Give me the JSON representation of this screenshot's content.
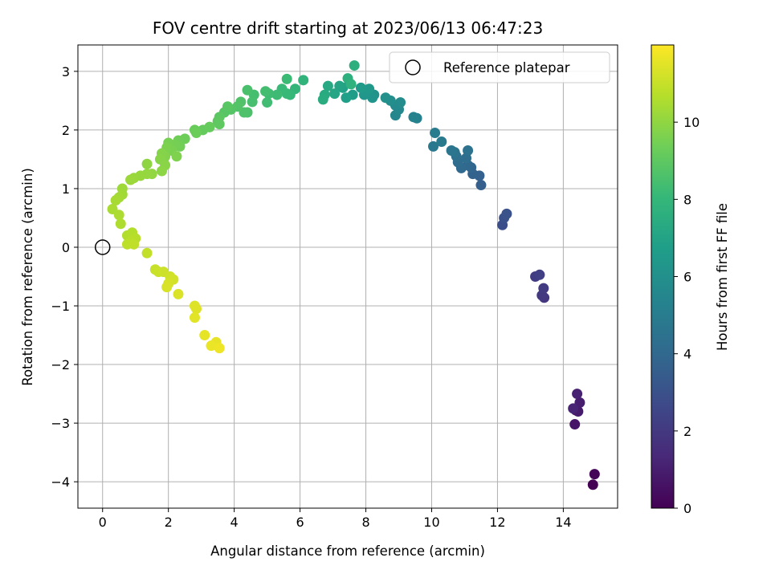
{
  "chart_data": {
    "type": "scatter",
    "title": "FOV centre drift starting at 2023/06/13 06:47:23",
    "xlabel": "Angular distance from reference (arcmin)",
    "ylabel": "Rotation from reference (arcmin)",
    "xlim": [
      -0.75,
      15.65
    ],
    "ylim": [
      -4.45,
      3.45
    ],
    "xticks": [
      0,
      2,
      4,
      6,
      8,
      10,
      12,
      14
    ],
    "yticks": [
      -4,
      -3,
      -2,
      -1,
      0,
      1,
      2,
      3
    ],
    "grid": true,
    "legend": {
      "placement": "top-right",
      "entries": [
        "Reference platepar"
      ]
    },
    "reference_point": {
      "x": 0,
      "y": 0
    },
    "colorbar": {
      "label": "Hours from first FF file",
      "range": [
        0,
        12
      ],
      "ticks": [
        0,
        2,
        4,
        6,
        8,
        10
      ],
      "colormap": "viridis"
    },
    "points": [
      [
        14.9,
        -4.05,
        0.0
      ],
      [
        14.95,
        -3.87,
        0.1
      ],
      [
        14.35,
        -3.02,
        0.7
      ],
      [
        14.38,
        -2.78,
        0.8
      ],
      [
        14.45,
        -2.8,
        0.9
      ],
      [
        14.5,
        -2.65,
        1.0
      ],
      [
        14.42,
        -2.5,
        1.1
      ],
      [
        14.3,
        -2.75,
        1.2
      ],
      [
        13.42,
        -0.86,
        1.9
      ],
      [
        13.35,
        -0.82,
        2.0
      ],
      [
        13.4,
        -0.7,
        2.1
      ],
      [
        13.15,
        -0.5,
        2.2
      ],
      [
        13.28,
        -0.47,
        2.3
      ],
      [
        12.15,
        0.38,
        2.9
      ],
      [
        12.2,
        0.5,
        3.0
      ],
      [
        12.28,
        0.57,
        3.1
      ],
      [
        11.5,
        1.06,
        3.6
      ],
      [
        11.45,
        1.22,
        3.7
      ],
      [
        11.25,
        1.25,
        3.8
      ],
      [
        11.2,
        1.36,
        3.9
      ],
      [
        11.1,
        1.4,
        4.0
      ],
      [
        10.9,
        1.35,
        4.1
      ],
      [
        10.8,
        1.45,
        4.2
      ],
      [
        11.05,
        1.52,
        4.3
      ],
      [
        10.75,
        1.55,
        4.4
      ],
      [
        11.1,
        1.65,
        4.5
      ],
      [
        10.7,
        1.62,
        4.6
      ],
      [
        10.6,
        1.65,
        4.7
      ],
      [
        10.05,
        1.72,
        4.8
      ],
      [
        10.3,
        1.8,
        4.9
      ],
      [
        10.1,
        1.95,
        5.0
      ],
      [
        9.55,
        2.2,
        5.3
      ],
      [
        9.45,
        2.22,
        5.4
      ],
      [
        8.9,
        2.25,
        5.5
      ],
      [
        9.0,
        2.35,
        5.6
      ],
      [
        8.9,
        2.42,
        5.7
      ],
      [
        9.05,
        2.47,
        5.8
      ],
      [
        8.75,
        2.5,
        5.9
      ],
      [
        8.6,
        2.55,
        6.0
      ],
      [
        8.25,
        2.6,
        6.1
      ],
      [
        8.2,
        2.55,
        6.2
      ],
      [
        7.95,
        2.6,
        6.3
      ],
      [
        8.1,
        2.7,
        6.4
      ],
      [
        7.85,
        2.72,
        6.5
      ],
      [
        7.6,
        2.6,
        6.6
      ],
      [
        7.4,
        2.55,
        6.7
      ],
      [
        7.3,
        2.72,
        6.8
      ],
      [
        7.5,
        2.8,
        6.9
      ],
      [
        7.2,
        2.75,
        7.0
      ],
      [
        7.05,
        2.62,
        7.1
      ],
      [
        6.85,
        2.75,
        7.2
      ],
      [
        6.75,
        2.6,
        7.3
      ],
      [
        6.7,
        2.52,
        7.4
      ],
      [
        7.65,
        3.1,
        7.5
      ],
      [
        7.45,
        2.88,
        7.6
      ],
      [
        7.55,
        2.78,
        7.7
      ],
      [
        6.1,
        2.85,
        7.8
      ],
      [
        5.85,
        2.7,
        7.9
      ],
      [
        5.7,
        2.6,
        8.0
      ],
      [
        5.6,
        2.62,
        8.05
      ],
      [
        5.45,
        2.7,
        8.1
      ],
      [
        5.6,
        2.87,
        8.15
      ],
      [
        5.3,
        2.6,
        8.2
      ],
      [
        5.05,
        2.62,
        8.25
      ],
      [
        5.0,
        2.47,
        8.3
      ],
      [
        4.95,
        2.66,
        8.35
      ],
      [
        4.6,
        2.6,
        8.4
      ],
      [
        4.55,
        2.48,
        8.45
      ],
      [
        4.4,
        2.68,
        8.5
      ],
      [
        4.4,
        2.3,
        8.55
      ],
      [
        4.3,
        2.3,
        8.6
      ],
      [
        4.2,
        2.48,
        8.65
      ],
      [
        4.1,
        2.4,
        8.7
      ],
      [
        3.9,
        2.35,
        8.75
      ],
      [
        3.7,
        2.3,
        8.8
      ],
      [
        3.8,
        2.4,
        8.85
      ],
      [
        3.55,
        2.22,
        8.9
      ],
      [
        3.5,
        2.15,
        8.95
      ],
      [
        3.55,
        2.1,
        9.0
      ],
      [
        3.25,
        2.05,
        9.05
      ],
      [
        3.05,
        2.0,
        9.1
      ],
      [
        3.25,
        2.05,
        9.15
      ],
      [
        2.8,
        2.0,
        9.2
      ],
      [
        2.85,
        1.95,
        9.25
      ],
      [
        2.5,
        1.85,
        9.3
      ],
      [
        2.3,
        1.82,
        9.35
      ],
      [
        2.35,
        1.72,
        9.4
      ],
      [
        2.2,
        1.75,
        9.45
      ],
      [
        2.0,
        1.78,
        9.5
      ],
      [
        2.1,
        1.65,
        9.55
      ],
      [
        1.95,
        1.7,
        9.6
      ],
      [
        2.25,
        1.55,
        9.65
      ],
      [
        1.9,
        1.55,
        9.7
      ],
      [
        1.8,
        1.6,
        9.75
      ],
      [
        1.75,
        1.5,
        9.8
      ],
      [
        1.9,
        1.4,
        9.85
      ],
      [
        1.8,
        1.3,
        9.9
      ],
      [
        1.35,
        1.42,
        9.95
      ],
      [
        1.5,
        1.25,
        10.0
      ],
      [
        1.35,
        1.25,
        10.05
      ],
      [
        1.15,
        1.22,
        10.1
      ],
      [
        0.95,
        1.18,
        10.15
      ],
      [
        0.85,
        1.15,
        10.2
      ],
      [
        0.6,
        1.0,
        10.25
      ],
      [
        0.6,
        0.9,
        10.3
      ],
      [
        0.5,
        0.85,
        10.35
      ],
      [
        0.4,
        0.8,
        10.4
      ],
      [
        0.3,
        0.65,
        10.45
      ],
      [
        0.5,
        0.55,
        10.5
      ],
      [
        0.55,
        0.4,
        10.55
      ],
      [
        0.75,
        0.2,
        10.6
      ],
      [
        0.9,
        0.25,
        10.65
      ],
      [
        1.0,
        0.15,
        10.7
      ],
      [
        0.85,
        0.1,
        10.75
      ],
      [
        0.75,
        0.05,
        10.8
      ],
      [
        0.95,
        0.05,
        10.85
      ],
      [
        1.35,
        -0.1,
        10.9
      ],
      [
        1.6,
        -0.38,
        11.0
      ],
      [
        1.7,
        -0.42,
        11.05
      ],
      [
        1.85,
        -0.42,
        11.1
      ],
      [
        2.05,
        -0.5,
        11.15
      ],
      [
        2.15,
        -0.55,
        11.2
      ],
      [
        2.0,
        -0.62,
        11.25
      ],
      [
        1.95,
        -0.68,
        11.3
      ],
      [
        2.3,
        -0.8,
        11.35
      ],
      [
        2.8,
        -1.0,
        11.4
      ],
      [
        2.85,
        -1.05,
        11.45
      ],
      [
        2.8,
        -1.2,
        11.5
      ],
      [
        3.1,
        -1.5,
        11.55
      ],
      [
        3.45,
        -1.62,
        11.6
      ],
      [
        3.3,
        -1.68,
        11.65
      ],
      [
        3.55,
        -1.72,
        11.7
      ]
    ]
  }
}
